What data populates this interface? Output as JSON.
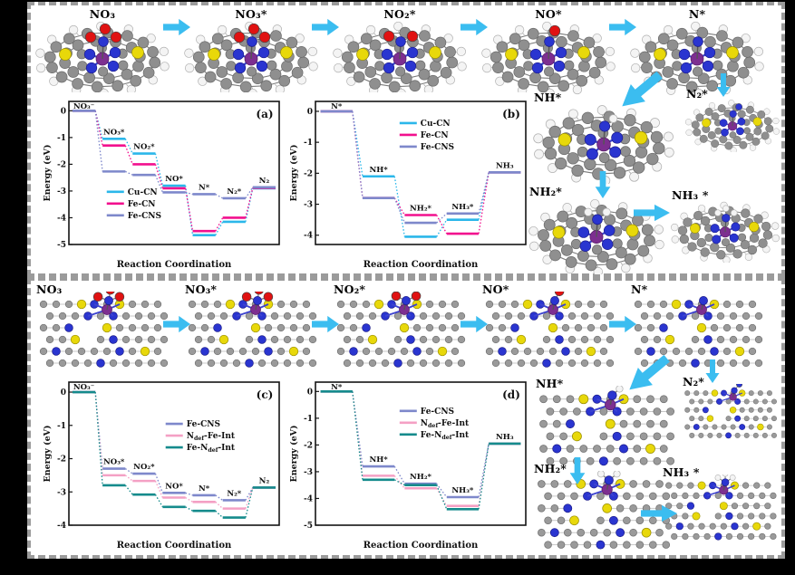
{
  "figure": {
    "background": "#000000",
    "panel_background": "#ffffff",
    "border_color": "#9b9b9b",
    "arrow_color": "#3bbdf0"
  },
  "atom_colors": {
    "carbon": "#8f8f8f",
    "hydrogen": "#f4f4f4",
    "nitrogen": "#2a35d0",
    "sulfur": "#e8d80a",
    "oxygen": "#e01212",
    "metal": "#7d2f90"
  },
  "top_panel": {
    "pathway": [
      {
        "label": "NO₃",
        "ads": "NO3"
      },
      {
        "label": "NO₃*",
        "ads": "NO3"
      },
      {
        "label": "NO₂*",
        "ads": "NO2"
      },
      {
        "label": "NO*",
        "ads": "NO"
      },
      {
        "label": "N*",
        "ads": "N"
      }
    ],
    "branch": [
      {
        "label": "NH*",
        "ads": "NH"
      },
      {
        "label": "N₂*",
        "ads": "N2"
      },
      {
        "label": "NH₂*",
        "ads": "NH2"
      },
      {
        "label": "NH₃ *",
        "ads": "NH3"
      }
    ]
  },
  "bottom_panel": {
    "pathway": [
      {
        "label": "NO₃",
        "ads": "NO3"
      },
      {
        "label": "NO₃*",
        "ads": "NO3"
      },
      {
        "label": "NO₂*",
        "ads": "NO2"
      },
      {
        "label": "NO*",
        "ads": "NO"
      },
      {
        "label": "N*",
        "ads": "N"
      }
    ],
    "branch": [
      {
        "label": "NH*",
        "ads": "NH"
      },
      {
        "label": "N₂*",
        "ads": "N2"
      },
      {
        "label": "NH₂*",
        "ads": "NH2"
      },
      {
        "label": "NH₃ *",
        "ads": "NH3"
      }
    ]
  },
  "chart_data": [
    {
      "type": "line",
      "tag": "(a)",
      "xlabel": "Reaction Coordination",
      "ylabel": "Energy (eV)",
      "step_labels": [
        "NO₃⁻",
        "NO₃*",
        "NO₂*",
        "NO*",
        "N*",
        "N₂*",
        "N₂"
      ],
      "yticks": [
        0,
        -1,
        -2,
        -3,
        -4,
        -5
      ],
      "ylim": [
        -5,
        0.35
      ],
      "grid": false,
      "legend_pos": [
        0.18,
        0.6
      ],
      "series": [
        {
          "name": "Cu-CN",
          "color": "#2bb7ea",
          "values": [
            0,
            -1.05,
            -1.6,
            -2.8,
            -4.65,
            -4.15,
            -2.9
          ]
        },
        {
          "name": "Fe-CN",
          "color": "#f2108e",
          "values": [
            0,
            -1.3,
            -2.0,
            -2.9,
            -4.5,
            -4.0,
            -2.88
          ]
        },
        {
          "name": "Fe-CNS",
          "color": "#7e88cb",
          "values": [
            0,
            -2.27,
            -2.4,
            -3.05,
            -3.12,
            -3.27,
            -2.86
          ]
        }
      ]
    },
    {
      "type": "line",
      "tag": "(b)",
      "xlabel": "Reaction Coordination",
      "ylabel": "Energy (eV)",
      "step_labels": [
        "N*",
        "NH*",
        "NH₂*",
        "NH₃*",
        "NH₃"
      ],
      "yticks": [
        0,
        -1,
        -2,
        -3,
        -4
      ],
      "ylim": [
        -4.3,
        0.32
      ],
      "grid": false,
      "legend_pos": [
        0.4,
        0.12
      ],
      "series": [
        {
          "name": "Cu-CN",
          "color": "#2bb7ea",
          "values": [
            0,
            -2.1,
            -4.05,
            -3.5,
            -1.97
          ]
        },
        {
          "name": "Fe-CN",
          "color": "#f2108e",
          "values": [
            0,
            -2.8,
            -3.35,
            -3.95,
            -1.97
          ]
        },
        {
          "name": "Fe-CNS",
          "color": "#7e88cb",
          "values": [
            0,
            -2.8,
            -3.6,
            -3.3,
            -1.97
          ]
        }
      ]
    },
    {
      "type": "line",
      "tag": "(c)",
      "xlabel": "Reaction Coordination",
      "ylabel": "Energy (eV)",
      "step_labels": [
        "NO₃⁻",
        "NO₃*",
        "NO₂*",
        "NO*",
        "N*",
        "N₂*",
        "N₂"
      ],
      "yticks": [
        0,
        -1,
        -2,
        -3,
        -4
      ],
      "ylim": [
        -4,
        0.3
      ],
      "grid": false,
      "legend_pos": [
        0.46,
        0.26
      ],
      "series": [
        {
          "name": "Fe-CNS",
          "color": "#7e88cb",
          "values": [
            0,
            -2.3,
            -2.45,
            -3.03,
            -3.1,
            -3.25,
            -2.87
          ]
        },
        {
          "name": "N_{def}-Fe-Int",
          "color": "#f4a0c4",
          "values": [
            0,
            -2.5,
            -2.67,
            -3.17,
            -3.3,
            -3.5,
            -2.87
          ]
        },
        {
          "name": "Fe-N_{def}-Int",
          "color": "#158b8c",
          "values": [
            0,
            -2.8,
            -3.08,
            -3.45,
            -3.57,
            -3.77,
            -2.87
          ]
        }
      ]
    },
    {
      "type": "line",
      "tag": "(d)",
      "xlabel": "Reaction Coordination",
      "ylabel": "Energy (eV)",
      "step_labels": [
        "N*",
        "NH*",
        "NH₂*",
        "NH₃*",
        "NH₃"
      ],
      "yticks": [
        0,
        -1,
        -2,
        -3,
        -4,
        -5
      ],
      "ylim": [
        -5,
        0.35
      ],
      "grid": false,
      "legend_pos": [
        0.4,
        0.17
      ],
      "series": [
        {
          "name": "Fe-CNS",
          "color": "#7e88cb",
          "values": [
            0,
            -2.8,
            -3.45,
            -3.95,
            -1.95
          ]
        },
        {
          "name": "N_{def}-Fe-Int",
          "color": "#f4a0c4",
          "values": [
            0,
            -3.15,
            -3.62,
            -4.28,
            -1.95
          ]
        },
        {
          "name": "Fe-N_{def}-Int",
          "color": "#158b8c",
          "values": [
            0,
            -3.3,
            -3.5,
            -4.4,
            -1.95
          ]
        }
      ]
    }
  ]
}
